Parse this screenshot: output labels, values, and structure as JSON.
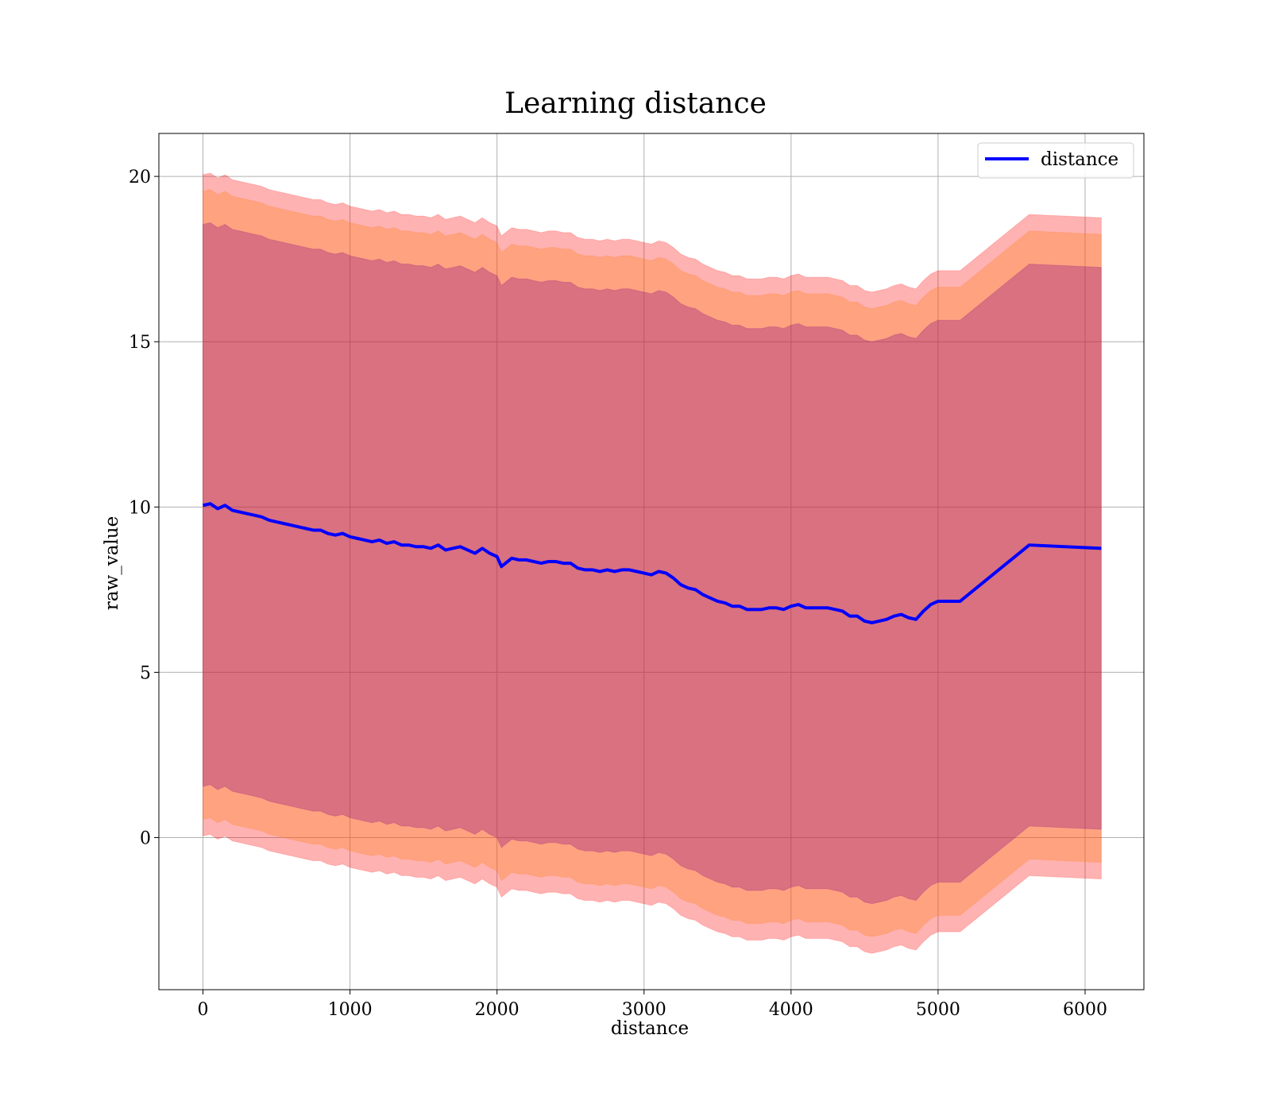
{
  "chart_data": {
    "type": "line",
    "title": "Learning distance",
    "xlabel": "distance",
    "ylabel": "raw_value",
    "xlim": [
      -300,
      6400
    ],
    "ylim": [
      -4.6,
      21.3
    ],
    "grid": true,
    "legend_position": "top-right",
    "x_ticks": [
      0,
      1000,
      2000,
      3000,
      4000,
      5000,
      6000
    ],
    "y_ticks": [
      0,
      5,
      10,
      15,
      20
    ],
    "series": [
      {
        "name": "distance",
        "color": "#0000ff",
        "x": [
          0,
          50,
          100,
          150,
          200,
          250,
          300,
          350,
          400,
          450,
          500,
          550,
          600,
          650,
          700,
          750,
          800,
          850,
          900,
          950,
          1000,
          1050,
          1100,
          1150,
          1200,
          1250,
          1300,
          1350,
          1400,
          1450,
          1500,
          1550,
          1600,
          1650,
          1700,
          1750,
          1800,
          1850,
          1900,
          1950,
          2000,
          2030,
          2100,
          2150,
          2200,
          2250,
          2300,
          2350,
          2400,
          2450,
          2500,
          2550,
          2600,
          2650,
          2700,
          2750,
          2800,
          2850,
          2900,
          2950,
          3000,
          3050,
          3100,
          3150,
          3200,
          3250,
          3300,
          3350,
          3400,
          3450,
          3500,
          3550,
          3600,
          3650,
          3700,
          3750,
          3800,
          3850,
          3900,
          3950,
          4000,
          4050,
          4100,
          4150,
          4200,
          4250,
          4300,
          4350,
          4400,
          4450,
          4500,
          4550,
          4600,
          4650,
          4700,
          4750,
          4800,
          4850,
          4900,
          4950,
          5000,
          5150,
          5620,
          6110
        ],
        "y": [
          10.05,
          10.1,
          9.95,
          10.05,
          9.9,
          9.85,
          9.8,
          9.75,
          9.7,
          9.6,
          9.55,
          9.5,
          9.45,
          9.4,
          9.35,
          9.3,
          9.3,
          9.2,
          9.15,
          9.2,
          9.1,
          9.05,
          9.0,
          8.95,
          9.0,
          8.9,
          8.95,
          8.85,
          8.85,
          8.8,
          8.8,
          8.75,
          8.85,
          8.7,
          8.75,
          8.8,
          8.7,
          8.6,
          8.75,
          8.6,
          8.5,
          8.2,
          8.45,
          8.4,
          8.4,
          8.35,
          8.3,
          8.35,
          8.35,
          8.3,
          8.3,
          8.15,
          8.1,
          8.1,
          8.05,
          8.1,
          8.05,
          8.1,
          8.1,
          8.05,
          8.0,
          7.95,
          8.05,
          8.0,
          7.85,
          7.65,
          7.55,
          7.5,
          7.35,
          7.25,
          7.15,
          7.1,
          7.0,
          7.0,
          6.9,
          6.9,
          6.9,
          6.95,
          6.95,
          6.9,
          7.0,
          7.05,
          6.95,
          6.95,
          6.95,
          6.95,
          6.9,
          6.85,
          6.7,
          6.7,
          6.55,
          6.5,
          6.55,
          6.6,
          6.7,
          6.75,
          6.65,
          6.6,
          6.85,
          7.05,
          7.15,
          7.15,
          8.85,
          8.75
        ]
      }
    ],
    "bands": [
      {
        "color": "#ff0000",
        "alpha": 0.3,
        "half_width": 10.0
      },
      {
        "color": "#ff7f0e",
        "alpha": 0.3,
        "half_width": 9.5
      },
      {
        "color": "#800080",
        "alpha": 0.3,
        "half_width": 8.5
      }
    ]
  }
}
